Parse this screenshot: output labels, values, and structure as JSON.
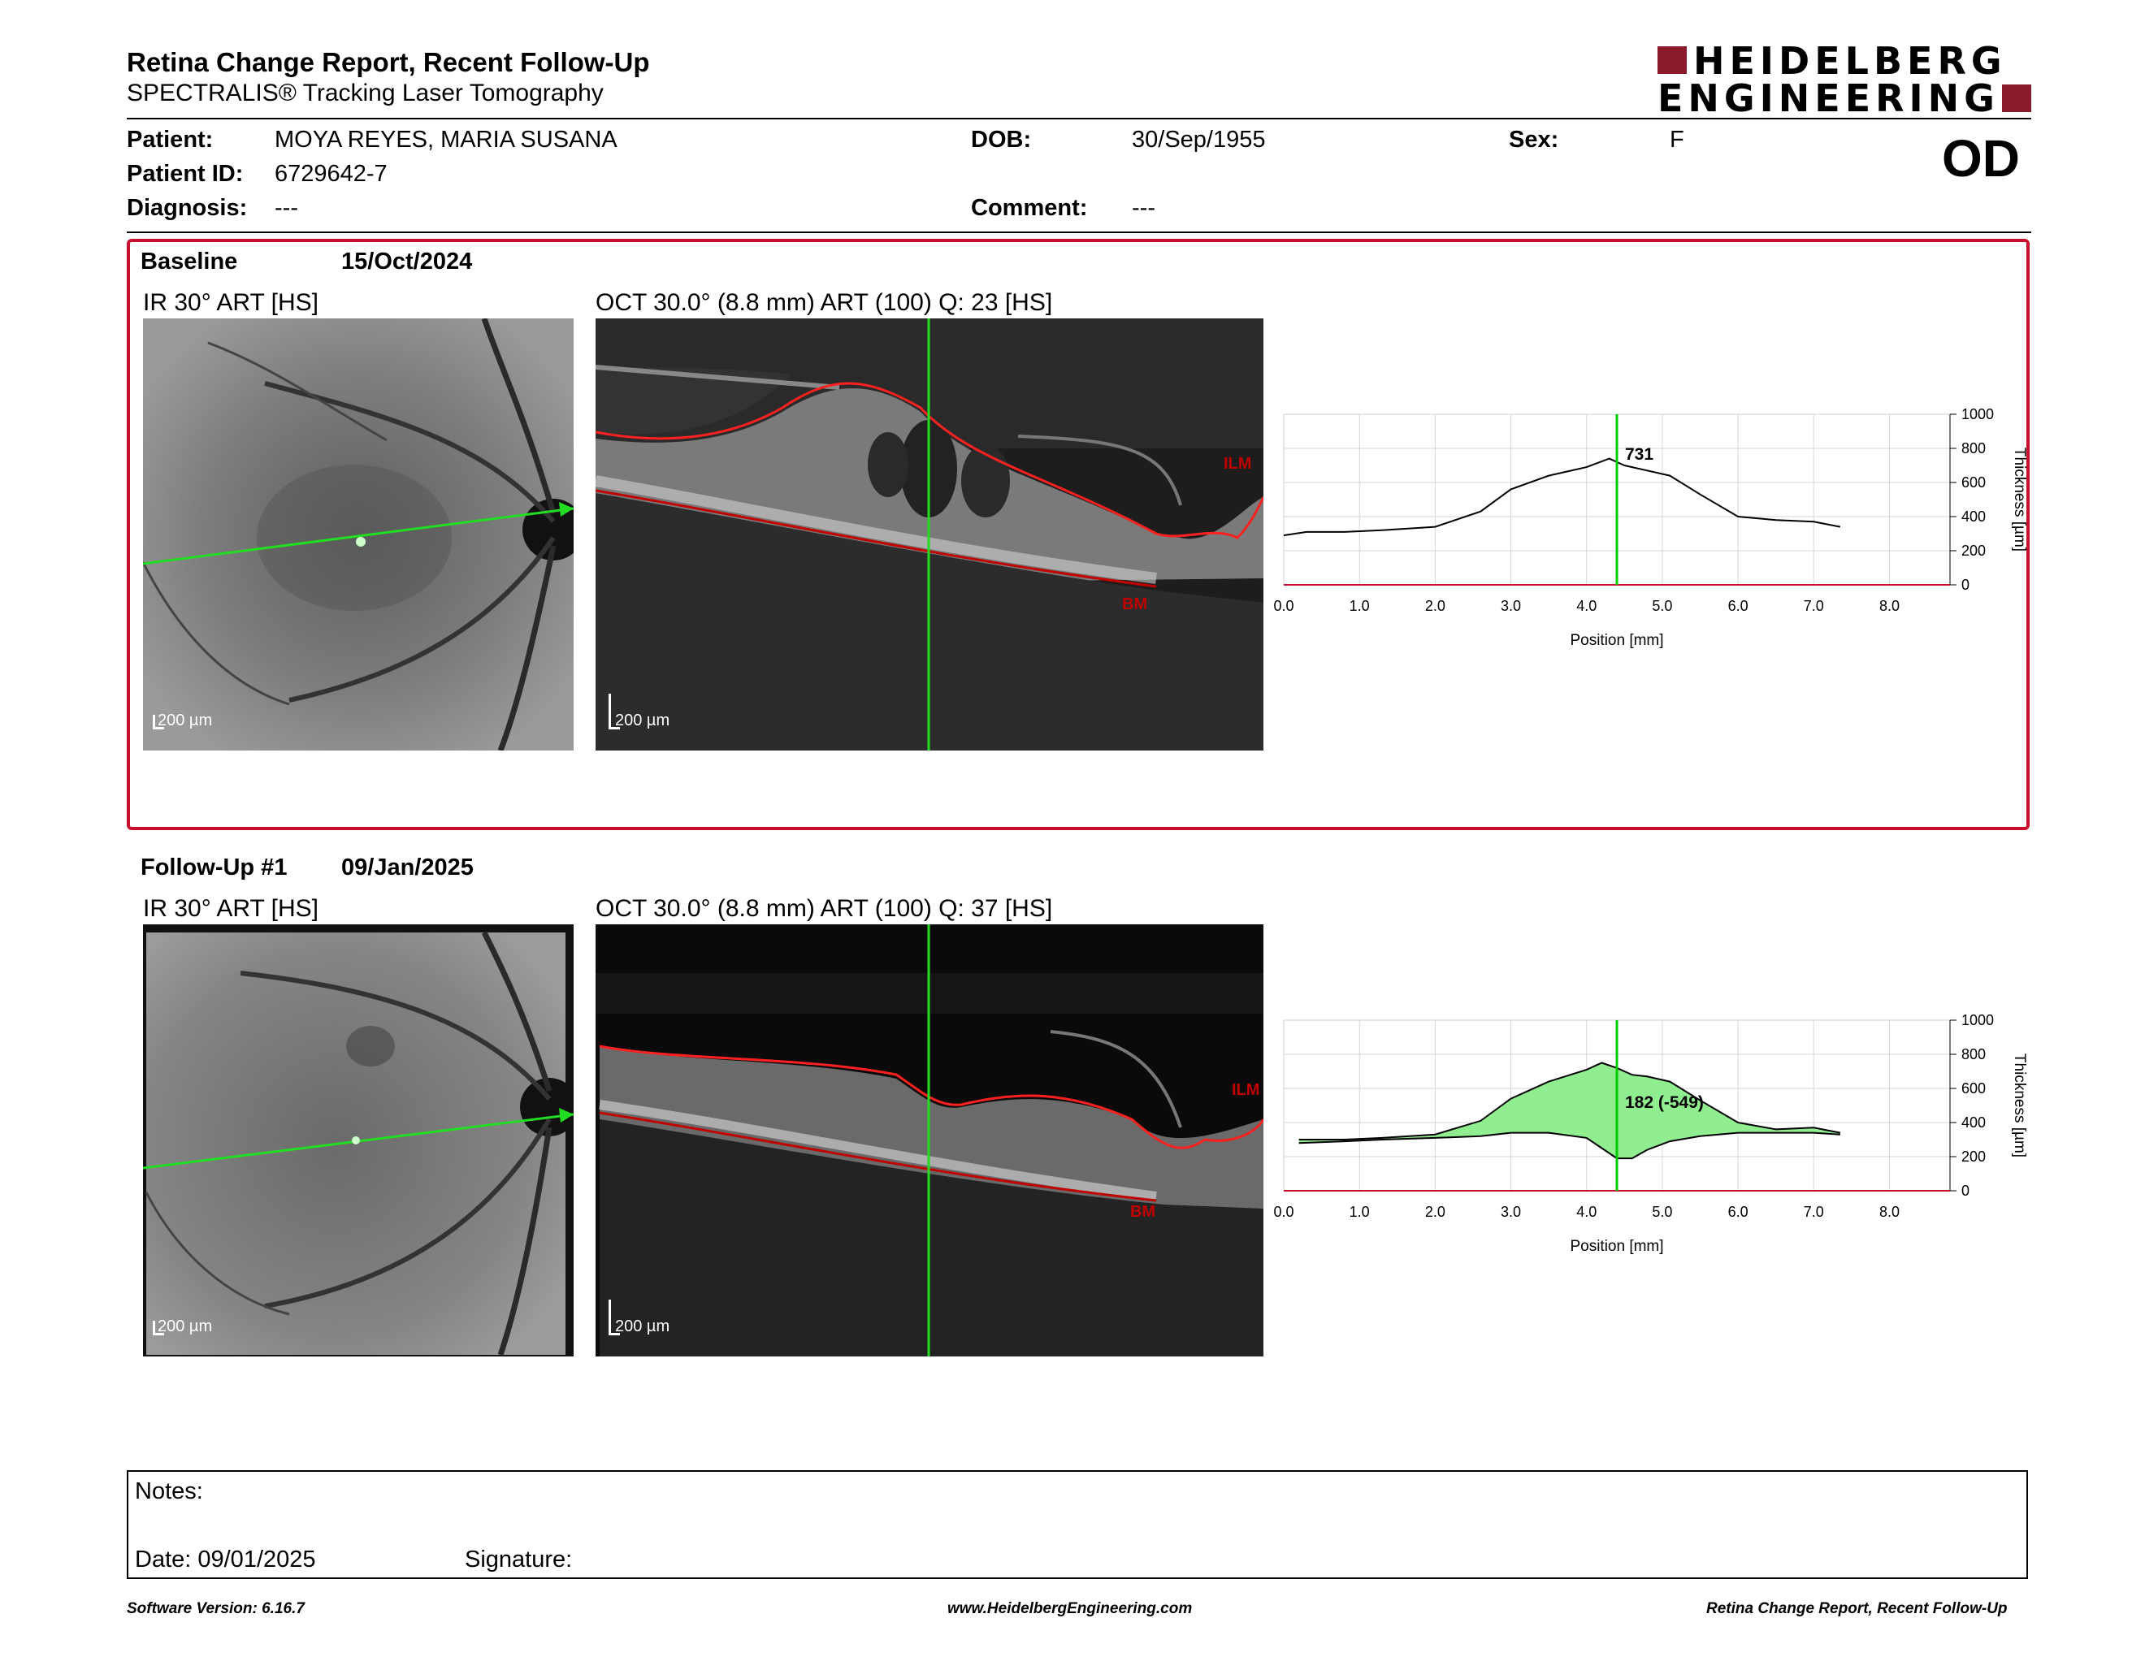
{
  "header": {
    "title": "Retina Change Report, Recent Follow-Up",
    "subtitle": "SPECTRALIS® Tracking Laser Tomography",
    "logo_line1": "HEIDELBERG",
    "logo_line2": "ENGINEERING",
    "eye": "OD"
  },
  "patient": {
    "patient_label": "Patient:",
    "patient_value": "MOYA REYES, MARIA SUSANA",
    "id_label": "Patient ID:",
    "id_value": "6729642-7",
    "diagnosis_label": "Diagnosis:",
    "diagnosis_value": "---",
    "dob_label": "DOB:",
    "dob_value": "30/Sep/1955",
    "comment_label": "Comment:",
    "comment_value": "---",
    "sex_label": "Sex:",
    "sex_value": "F"
  },
  "baseline": {
    "label": "Baseline",
    "date": "15/Oct/2024",
    "ir_title": "IR 30° ART [HS]",
    "oct_title": "OCT 30.0° (8.8 mm) ART (100) Q: 23 [HS]",
    "scale_ir": "200 µm",
    "scale_oct": "200 µm",
    "ilm": "ILM",
    "bm": "BM",
    "marker_label": "731"
  },
  "followup": {
    "label": "Follow-Up #1",
    "date": "09/Jan/2025",
    "ir_title": "IR 30° ART [HS]",
    "oct_title": "OCT 30.0° (8.8 mm) ART (100) Q: 37 [HS]",
    "scale_ir": "200 µm",
    "scale_oct": "200 µm",
    "ilm": "ILM",
    "bm": "BM",
    "marker_label": "182 (-549)"
  },
  "chart_data": [
    {
      "type": "line",
      "xlabel": "Position [mm]",
      "ylabel": "Thickness [µm]",
      "xlim": [
        0,
        8.8
      ],
      "ylim": [
        0,
        1000
      ],
      "x_ticks": [
        "0.0",
        "1.0",
        "2.0",
        "3.0",
        "4.0",
        "5.0",
        "6.0",
        "7.0",
        "8.0"
      ],
      "y_ticks": [
        "0",
        "200",
        "400",
        "600",
        "800",
        "1000"
      ],
      "marker_x": 4.4,
      "marker_label": "731",
      "series": [
        {
          "x": [
            0.0,
            0.3,
            0.8,
            1.3,
            2.0,
            2.6,
            3.0,
            3.5,
            4.0,
            4.3,
            4.5,
            4.8,
            5.1,
            5.5,
            6.0,
            6.5,
            7.0,
            7.35
          ],
          "y": [
            290,
            310,
            310,
            320,
            340,
            430,
            560,
            640,
            690,
            740,
            700,
            670,
            640,
            530,
            400,
            380,
            370,
            340
          ]
        }
      ],
      "colors": {
        "line": "#000000",
        "marker": "#00cc00",
        "axis": "#c8102e"
      }
    },
    {
      "type": "area",
      "xlabel": "Position [mm]",
      "ylabel": "Thickness [µm]",
      "xlim": [
        0,
        8.8
      ],
      "ylim": [
        0,
        1000
      ],
      "x_ticks": [
        "0.0",
        "1.0",
        "2.0",
        "3.0",
        "4.0",
        "5.0",
        "6.0",
        "7.0",
        "8.0"
      ],
      "y_ticks": [
        "0",
        "200",
        "400",
        "600",
        "800",
        "1000"
      ],
      "marker_x": 4.4,
      "marker_label": "182 (-549)",
      "series": [
        {
          "x": [
            0.2,
            0.8,
            1.3,
            2.0,
            2.6,
            3.0,
            3.5,
            4.0,
            4.2,
            4.4,
            4.6,
            4.8,
            5.1,
            5.5,
            6.0,
            6.5,
            7.0,
            7.35
          ],
          "y": [
            300,
            300,
            310,
            330,
            410,
            540,
            640,
            710,
            750,
            720,
            680,
            670,
            640,
            530,
            400,
            360,
            370,
            340
          ]
        },
        {
          "x": [
            0.2,
            0.8,
            1.3,
            2.0,
            2.6,
            3.0,
            3.5,
            4.0,
            4.2,
            4.4,
            4.6,
            4.8,
            5.1,
            5.5,
            6.0,
            6.5,
            7.0,
            7.35
          ],
          "y": [
            280,
            290,
            300,
            310,
            320,
            340,
            340,
            310,
            250,
            190,
            190,
            240,
            290,
            320,
            340,
            340,
            340,
            330
          ]
        }
      ],
      "colors": {
        "line": "#000000",
        "fill": "#90ee90",
        "marker": "#00cc00",
        "axis": "#c8102e"
      }
    }
  ],
  "notes": {
    "label": "Notes:",
    "date_label": "Date: 09/01/2025",
    "signature_label": "Signature:"
  },
  "footer": {
    "software": "Software Version: 6.16.7",
    "website": "www.HeidelbergEngineering.com",
    "report": "Retina Change Report, Recent Follow-Up"
  }
}
